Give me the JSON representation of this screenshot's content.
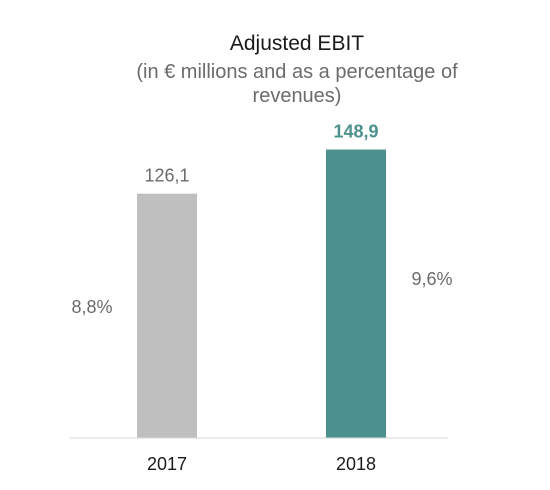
{
  "chart_data": {
    "type": "bar",
    "title": "Adjusted EBIT",
    "subtitle_lines": [
      "(in € millions and as a percentage of",
      "revenues)"
    ],
    "categories": [
      "2017",
      "2018"
    ],
    "values": [
      126.1,
      148.9
    ],
    "value_labels": [
      "126,1",
      "148,9"
    ],
    "percentage_labels": [
      "8,8%",
      "9,6%"
    ],
    "ylim": [
      0,
      160
    ],
    "grid": false,
    "legend": "none",
    "colors": {
      "bars": [
        "#bfbfbf",
        "#4d918f"
      ],
      "value_labels": [
        "#6b6b6b",
        "#4d918f"
      ],
      "axis": "#d9d9d9"
    }
  }
}
